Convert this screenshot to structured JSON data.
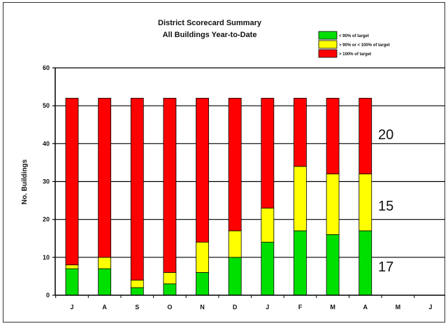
{
  "chart_data": {
    "type": "bar",
    "stacked": true,
    "title": "District Scorecard Summary",
    "subtitle": "All Buildings Year-to-Date",
    "ylabel": "No. Buildings",
    "xlabel": "",
    "ylim": [
      0,
      60
    ],
    "yticks": [
      0,
      10,
      20,
      30,
      40,
      50,
      60
    ],
    "grid": true,
    "legend_position": "top-right",
    "categories": [
      "J",
      "A",
      "S",
      "O",
      "N",
      "D",
      "J",
      "F",
      "M",
      "A",
      "M",
      "J"
    ],
    "series": [
      {
        "name": "< 90% of target",
        "color": "#00e000",
        "values": [
          7,
          7,
          2,
          3,
          6,
          10,
          14,
          17,
          16,
          17,
          null,
          null
        ]
      },
      {
        "name": "> 90% or < 100% of target",
        "color": "#ffff00",
        "values": [
          1,
          3,
          2,
          3,
          8,
          7,
          9,
          17,
          16,
          15,
          null,
          null
        ]
      },
      {
        "name": "> 100% of target",
        "color": "#ff0000",
        "values": [
          44,
          42,
          48,
          46,
          38,
          35,
          29,
          18,
          20,
          20,
          null,
          null
        ]
      }
    ],
    "annotations": [
      "20",
      "15",
      "17"
    ]
  }
}
